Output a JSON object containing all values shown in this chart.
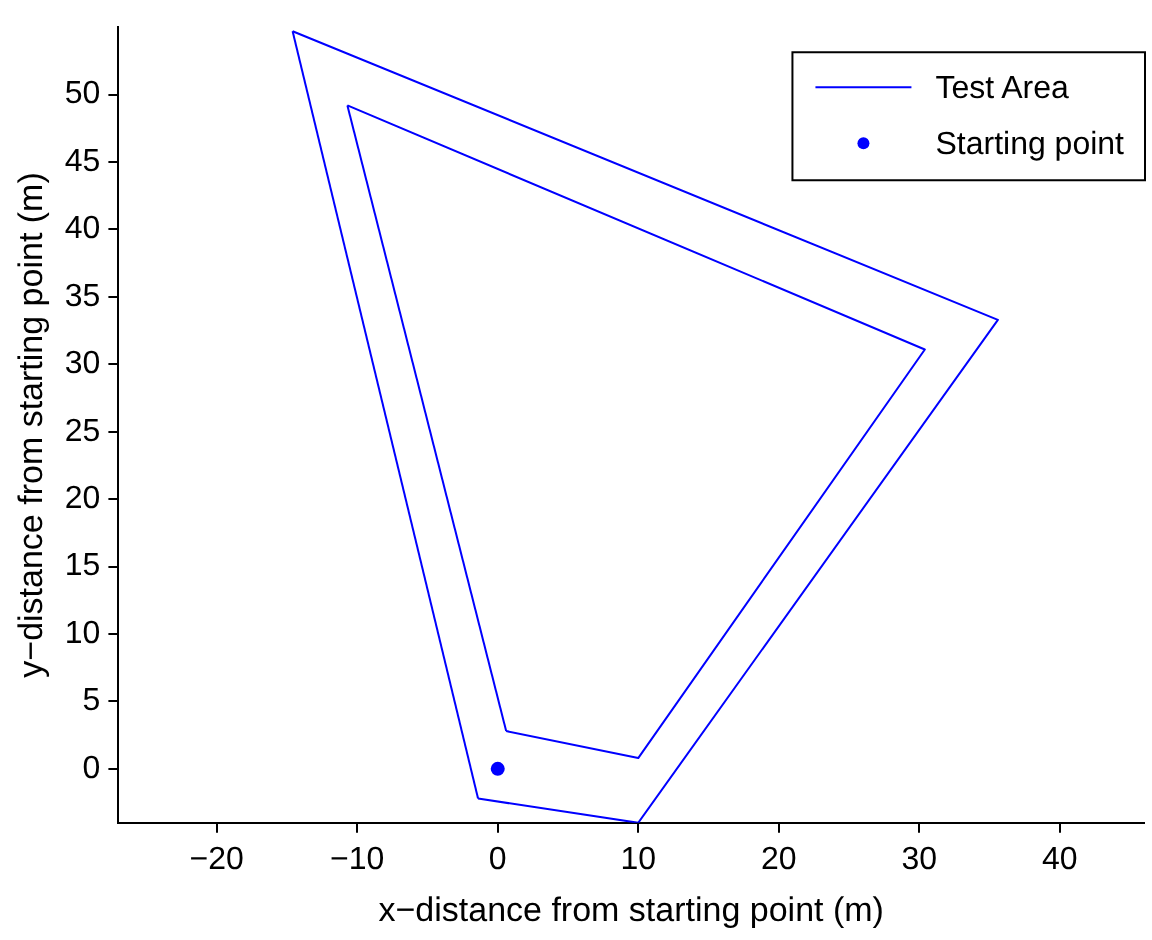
{
  "chart_data": {
    "type": "line",
    "xlabel": "x−distance from starting point (m)",
    "ylabel": "y−distance from starting point (m)",
    "xlim": [
      -27,
      46
    ],
    "ylim": [
      -4,
      55
    ],
    "xticks": [
      {
        "value": -20,
        "label": "−20"
      },
      {
        "value": -10,
        "label": "−10"
      },
      0,
      10,
      20,
      30,
      40
    ],
    "yticks": [
      0,
      5,
      10,
      15,
      20,
      25,
      30,
      35,
      40,
      45,
      50
    ],
    "grid": false,
    "legend": "top right",
    "series": [
      {
        "name": "Test Area",
        "type": "line",
        "color": "#0000ff",
        "marker": "none",
        "x": [
          -1.4,
          10,
          35.6,
          -14.6
        ],
        "values": [
          -2.2,
          -4,
          33.3,
          54.7
        ]
      },
      {
        "color": "#0000ff",
        "marker": "none",
        "x": [
          -14.6,
          -1.4
        ],
        "values": [
          54.7,
          -2.2
        ]
      },
      {
        "color": "#0000ff",
        "marker": "none",
        "x": [
          0.6,
          10,
          30.4,
          -10.7
        ],
        "values": [
          2.8,
          0.8,
          31.1,
          49.2
        ]
      },
      {
        "color": "#0000ff",
        "marker": "none",
        "x": [
          -10.7,
          0.6
        ],
        "values": [
          49.2,
          2.8
        ]
      },
      {
        "name": "Starting point",
        "type": "scatter",
        "color": "#0000ff",
        "marker": "circle",
        "x": [
          0
        ],
        "values": [
          0
        ]
      }
    ]
  }
}
